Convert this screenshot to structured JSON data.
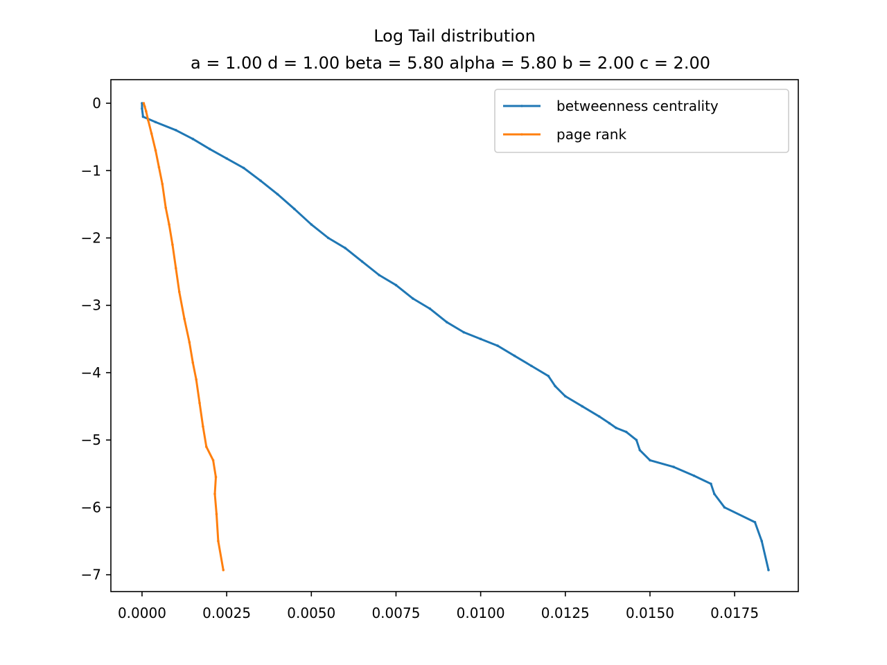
{
  "chart_data": {
    "type": "line",
    "title": "Log Tail distribution",
    "subtitle": "a = 1.00 d = 1.00 beta = 5.80 alpha = 5.80 b = 2.00 c = 2.00",
    "xlabel": "",
    "ylabel": "",
    "xlim": [
      -0.00092,
      0.01938
    ],
    "ylim": [
      -7.25,
      0.35
    ],
    "xticks": [
      0.0,
      0.0025,
      0.005,
      0.0075,
      0.01,
      0.0125,
      0.015,
      0.0175
    ],
    "xtick_labels": [
      "0.0000",
      "0.0025",
      "0.0050",
      "0.0075",
      "0.0100",
      "0.0125",
      "0.0150",
      "0.0175"
    ],
    "yticks": [
      0,
      -1,
      -2,
      -3,
      -4,
      -5,
      -6,
      -7
    ],
    "ytick_labels": [
      "0",
      "−1",
      "−2",
      "−3",
      "−4",
      "−5",
      "−6",
      "−7"
    ],
    "grid": false,
    "legend_position": "top-right",
    "series": [
      {
        "name": "betweenness centrality",
        "color": "#1f77b4",
        "x": [
          0.0,
          0.0,
          3e-05,
          0.0004,
          0.001,
          0.0015,
          0.002,
          0.0025,
          0.003,
          0.0035,
          0.004,
          0.0045,
          0.005,
          0.0055,
          0.006,
          0.0065,
          0.007,
          0.0075,
          0.008,
          0.0085,
          0.009,
          0.0095,
          0.01,
          0.0105,
          0.011,
          0.0115,
          0.012,
          0.0122,
          0.0125,
          0.013,
          0.0135,
          0.0138,
          0.014,
          0.0143,
          0.0146,
          0.0147,
          0.015,
          0.0157,
          0.0163,
          0.0168,
          0.0169,
          0.0172,
          0.0181,
          0.0183,
          0.0185
        ],
        "y": [
          0.0,
          -0.08,
          -0.2,
          -0.28,
          -0.4,
          -0.53,
          -0.68,
          -0.82,
          -0.96,
          -1.15,
          -1.35,
          -1.57,
          -1.8,
          -2.0,
          -2.15,
          -2.35,
          -2.55,
          -2.7,
          -2.9,
          -3.05,
          -3.25,
          -3.4,
          -3.5,
          -3.6,
          -3.75,
          -3.9,
          -4.05,
          -4.2,
          -4.35,
          -4.5,
          -4.65,
          -4.75,
          -4.82,
          -4.88,
          -5.0,
          -5.15,
          -5.3,
          -5.4,
          -5.53,
          -5.65,
          -5.8,
          -6.0,
          -6.22,
          -6.5,
          -6.93
        ]
      },
      {
        "name": "page rank",
        "color": "#ff7f0e",
        "x": [
          5e-05,
          8e-05,
          0.00012,
          0.00018,
          0.00028,
          0.0004,
          0.0005,
          0.0006,
          0.0007,
          0.0008,
          0.0009,
          0.001,
          0.0011,
          0.00125,
          0.0014,
          0.0015,
          0.0016,
          0.0017,
          0.0018,
          0.0019,
          0.0021,
          0.00218,
          0.00215,
          0.0022,
          0.00225,
          0.0024
        ],
        "y": [
          0.0,
          -0.05,
          -0.12,
          -0.25,
          -0.45,
          -0.7,
          -0.95,
          -1.2,
          -1.55,
          -1.8,
          -2.1,
          -2.45,
          -2.8,
          -3.2,
          -3.55,
          -3.85,
          -4.1,
          -4.45,
          -4.8,
          -5.1,
          -5.3,
          -5.55,
          -5.8,
          -6.1,
          -6.5,
          -6.93
        ]
      }
    ]
  }
}
